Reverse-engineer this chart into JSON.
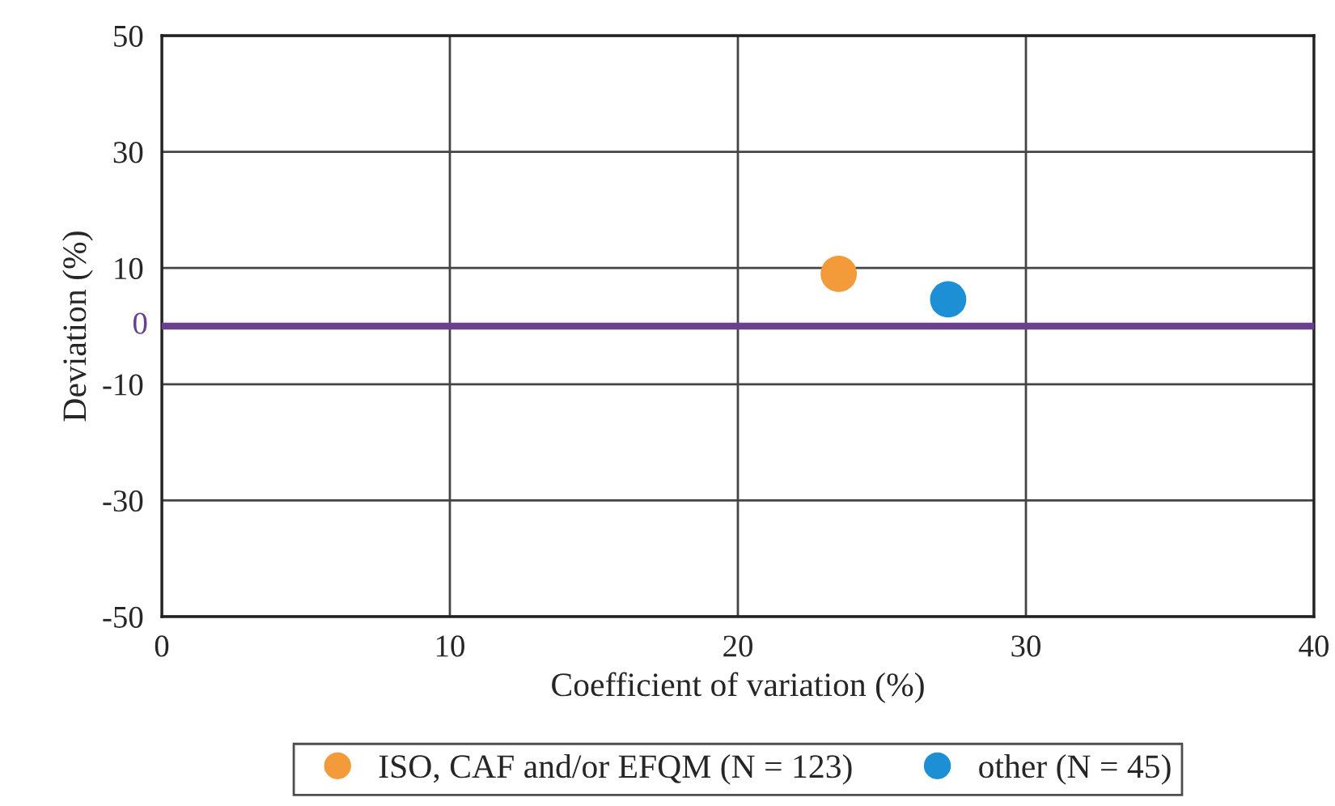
{
  "chart_data": {
    "type": "scatter",
    "xlabel": "Coefficient of variation (%)",
    "ylabel": "Deviation (%)",
    "series": [
      {
        "name": "ISO, CAF and/or EFQM (N = 123)",
        "color": "#f39a3b",
        "x": [
          23.5
        ],
        "values": [
          9.0
        ]
      },
      {
        "name": "other (N = 45)",
        "color": "#1d8fd5",
        "x": [
          27.3
        ],
        "values": [
          4.6
        ]
      }
    ],
    "xlim": [
      0,
      40
    ],
    "xticks": [
      0,
      10,
      20,
      30,
      40
    ],
    "ylim": [
      -50,
      50
    ],
    "yticks": [
      -50,
      -30,
      -10,
      10,
      30,
      50
    ],
    "ref_lines": [
      {
        "axis": "y",
        "value": 0,
        "label": "0",
        "color": "#6b3f8f"
      }
    ],
    "grid": true,
    "legend": "bottom",
    "marker": "circle"
  }
}
